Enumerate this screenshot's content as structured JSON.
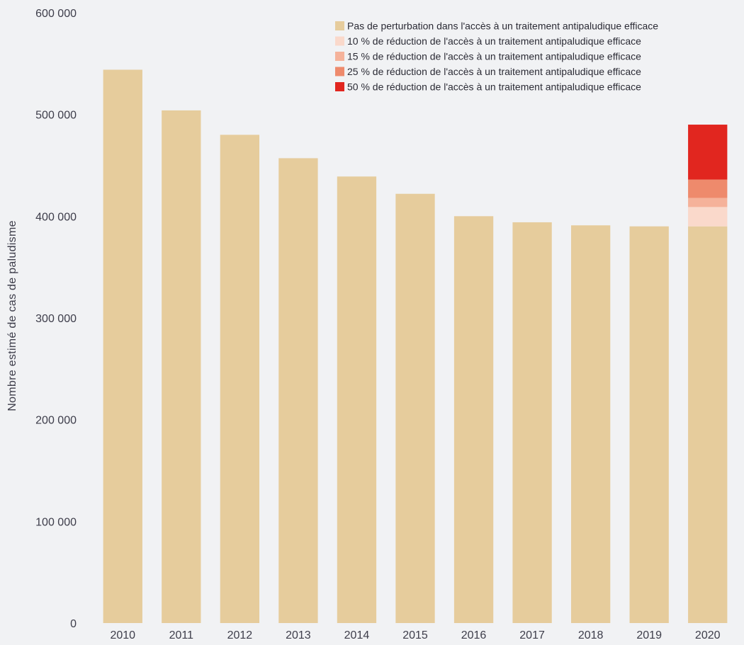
{
  "chart_data": {
    "type": "bar",
    "stacked": true,
    "title": "",
    "xlabel": "",
    "ylabel": "Nombre estimé de cas de paludisme",
    "ylim": [
      0,
      600000
    ],
    "yticks": [
      0,
      100000,
      200000,
      300000,
      400000,
      500000,
      600000
    ],
    "ytick_labels": [
      "0",
      "100 000",
      "200 000",
      "300 000",
      "400 000",
      "500 000",
      "600 000"
    ],
    "grid": false,
    "legend_position": "top-right",
    "categories": [
      "2010",
      "2011",
      "2012",
      "2013",
      "2014",
      "2015",
      "2016",
      "2017",
      "2018",
      "2019",
      "2020"
    ],
    "series": [
      {
        "name": "Pas de perturbation dans l'accès à un traitement antipaludique efficace",
        "color": "#e6cc9c",
        "values": [
          544000,
          504000,
          480000,
          457000,
          439000,
          422000,
          400000,
          394000,
          391000,
          390000,
          390000
        ]
      },
      {
        "name": "10 % de réduction de l'accès à un traitement antipaludique efficace",
        "color": "#fad9cb",
        "values": [
          0,
          0,
          0,
          0,
          0,
          0,
          0,
          0,
          0,
          0,
          19000
        ]
      },
      {
        "name": "15 % de réduction de l'accès à un traitement antipaludique efficace",
        "color": "#f5b29a",
        "values": [
          0,
          0,
          0,
          0,
          0,
          0,
          0,
          0,
          0,
          0,
          9000
        ]
      },
      {
        "name": "25 % de réduction de l'accès à un traitement antipaludique efficace",
        "color": "#ee8a6c",
        "values": [
          0,
          0,
          0,
          0,
          0,
          0,
          0,
          0,
          0,
          0,
          18000
        ]
      },
      {
        "name": "50 % de réduction de l'accès à un traitement antipaludique efficace",
        "color": "#e1261f",
        "values": [
          0,
          0,
          0,
          0,
          0,
          0,
          0,
          0,
          0,
          0,
          54000
        ]
      }
    ]
  }
}
